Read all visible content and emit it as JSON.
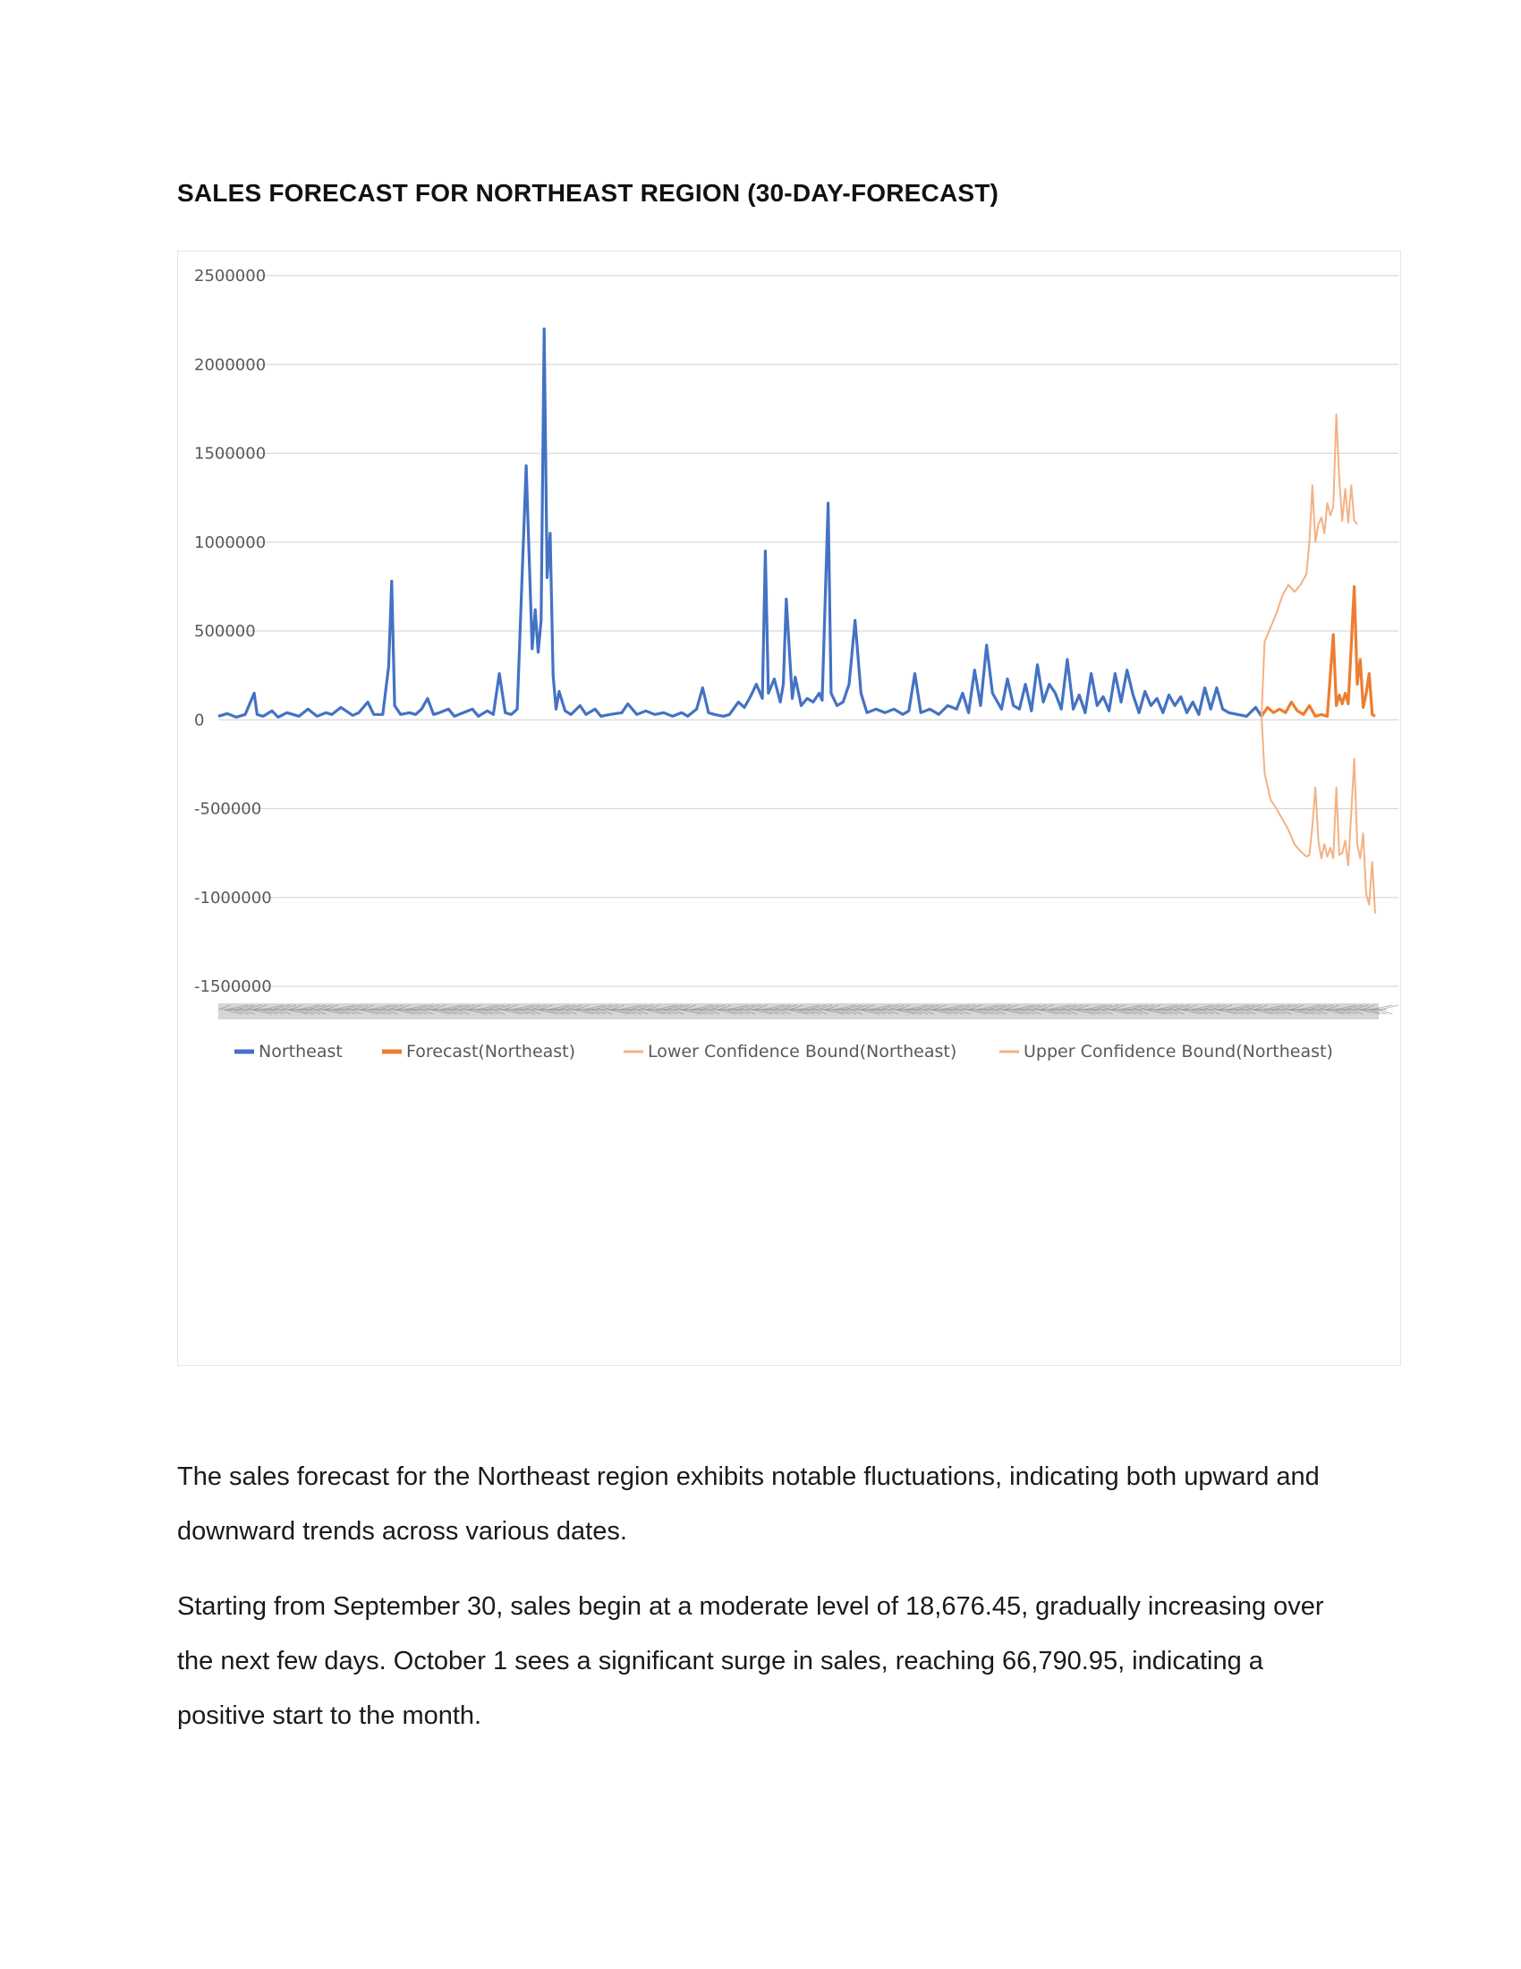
{
  "document": {
    "title": "SALES FORECAST FOR NORTHEAST REGION (30-DAY-FORECAST)",
    "paragraphs": [
      "The sales forecast for the Northeast region exhibits notable fluctuations, indicating both upward and downward trends across various dates.",
      "Starting from September 30, sales begin at a moderate level of 18,676.45, gradually increasing over the next few days. October 1 sees a significant surge in sales, reaching 66,790.95, indicating a positive start to the month."
    ]
  },
  "chart_data": {
    "type": "line",
    "title": "",
    "xlabel": "",
    "ylabel": "",
    "ylim": [
      -1500000,
      2500000
    ],
    "yticks": [
      "2500000",
      "2000000",
      "1500000",
      "1000000",
      "500000",
      "0",
      "-500000",
      "-1000000",
      "-1500000"
    ],
    "grid": true,
    "legend_position": "bottom",
    "x_labels_note": "x-axis date tick labels are rendered rotated and overlapping (illegible)",
    "series": [
      {
        "name": "Northeast",
        "color": "#4472C4",
        "points": [
          [
            0,
            20000
          ],
          [
            3,
            35000
          ],
          [
            6,
            15000
          ],
          [
            9,
            30000
          ],
          [
            12,
            150000
          ],
          [
            13,
            30000
          ],
          [
            15,
            20000
          ],
          [
            18,
            50000
          ],
          [
            20,
            15000
          ],
          [
            23,
            40000
          ],
          [
            27,
            20000
          ],
          [
            30,
            60000
          ],
          [
            33,
            20000
          ],
          [
            36,
            40000
          ],
          [
            38,
            30000
          ],
          [
            41,
            70000
          ],
          [
            45,
            25000
          ],
          [
            47,
            40000
          ],
          [
            50,
            100000
          ],
          [
            52,
            30000
          ],
          [
            55,
            30000
          ],
          [
            57,
            300000
          ],
          [
            58,
            780000
          ],
          [
            59,
            80000
          ],
          [
            61,
            30000
          ],
          [
            64,
            40000
          ],
          [
            66,
            30000
          ],
          [
            68,
            60000
          ],
          [
            70,
            120000
          ],
          [
            72,
            30000
          ],
          [
            74,
            40000
          ],
          [
            77,
            60000
          ],
          [
            79,
            20000
          ],
          [
            82,
            40000
          ],
          [
            85,
            60000
          ],
          [
            87,
            20000
          ],
          [
            90,
            50000
          ],
          [
            92,
            30000
          ],
          [
            94,
            260000
          ],
          [
            96,
            40000
          ],
          [
            98,
            30000
          ],
          [
            100,
            60000
          ],
          [
            103,
            1430000
          ],
          [
            105,
            400000
          ],
          [
            106,
            620000
          ],
          [
            107,
            380000
          ],
          [
            108,
            560000
          ],
          [
            109,
            2200000
          ],
          [
            110,
            800000
          ],
          [
            111,
            1050000
          ],
          [
            112,
            250000
          ],
          [
            113,
            60000
          ],
          [
            114,
            160000
          ],
          [
            116,
            50000
          ],
          [
            118,
            30000
          ],
          [
            121,
            80000
          ],
          [
            123,
            30000
          ],
          [
            126,
            60000
          ],
          [
            128,
            20000
          ],
          [
            131,
            30000
          ],
          [
            135,
            40000
          ],
          [
            137,
            90000
          ],
          [
            140,
            30000
          ],
          [
            143,
            50000
          ],
          [
            146,
            30000
          ],
          [
            149,
            40000
          ],
          [
            152,
            20000
          ],
          [
            155,
            40000
          ],
          [
            157,
            20000
          ],
          [
            160,
            60000
          ],
          [
            162,
            180000
          ],
          [
            164,
            40000
          ],
          [
            166,
            30000
          ],
          [
            169,
            20000
          ],
          [
            171,
            30000
          ],
          [
            174,
            100000
          ],
          [
            176,
            70000
          ],
          [
            178,
            130000
          ],
          [
            180,
            200000
          ],
          [
            182,
            120000
          ],
          [
            183,
            950000
          ],
          [
            184,
            150000
          ],
          [
            186,
            230000
          ],
          [
            188,
            100000
          ],
          [
            189,
            200000
          ],
          [
            190,
            680000
          ],
          [
            192,
            120000
          ],
          [
            193,
            240000
          ],
          [
            195,
            80000
          ],
          [
            197,
            120000
          ],
          [
            199,
            100000
          ],
          [
            201,
            150000
          ],
          [
            202,
            110000
          ],
          [
            204,
            1220000
          ],
          [
            205,
            150000
          ],
          [
            207,
            80000
          ],
          [
            209,
            100000
          ],
          [
            211,
            200000
          ],
          [
            213,
            560000
          ],
          [
            215,
            150000
          ],
          [
            217,
            40000
          ],
          [
            220,
            60000
          ],
          [
            223,
            40000
          ],
          [
            226,
            60000
          ],
          [
            229,
            30000
          ],
          [
            231,
            50000
          ],
          [
            233,
            260000
          ],
          [
            235,
            40000
          ],
          [
            238,
            60000
          ],
          [
            241,
            30000
          ],
          [
            244,
            80000
          ],
          [
            247,
            60000
          ],
          [
            249,
            150000
          ],
          [
            251,
            40000
          ],
          [
            253,
            280000
          ],
          [
            255,
            80000
          ],
          [
            257,
            420000
          ],
          [
            259,
            150000
          ],
          [
            262,
            60000
          ],
          [
            264,
            230000
          ],
          [
            266,
            80000
          ],
          [
            268,
            60000
          ],
          [
            270,
            200000
          ],
          [
            272,
            50000
          ],
          [
            274,
            310000
          ],
          [
            276,
            100000
          ],
          [
            278,
            200000
          ],
          [
            280,
            150000
          ],
          [
            282,
            60000
          ],
          [
            284,
            340000
          ],
          [
            286,
            60000
          ],
          [
            288,
            140000
          ],
          [
            290,
            40000
          ],
          [
            292,
            260000
          ],
          [
            294,
            80000
          ],
          [
            296,
            130000
          ],
          [
            298,
            50000
          ],
          [
            300,
            260000
          ],
          [
            302,
            100000
          ],
          [
            304,
            280000
          ],
          [
            306,
            140000
          ],
          [
            308,
            40000
          ],
          [
            310,
            160000
          ],
          [
            312,
            80000
          ],
          [
            314,
            120000
          ],
          [
            316,
            40000
          ],
          [
            318,
            140000
          ],
          [
            320,
            80000
          ],
          [
            322,
            130000
          ],
          [
            324,
            40000
          ],
          [
            326,
            100000
          ],
          [
            328,
            30000
          ],
          [
            330,
            180000
          ],
          [
            332,
            60000
          ],
          [
            334,
            180000
          ],
          [
            336,
            60000
          ],
          [
            338,
            40000
          ],
          [
            341,
            30000
          ],
          [
            344,
            20000
          ],
          [
            347,
            70000
          ],
          [
            349,
            20000
          ]
        ]
      },
      {
        "name": "Forecast(Northeast)",
        "color": "#ED7D31",
        "points": [
          [
            349,
            20000
          ],
          [
            351,
            70000
          ],
          [
            353,
            40000
          ],
          [
            355,
            60000
          ],
          [
            357,
            40000
          ],
          [
            359,
            100000
          ],
          [
            361,
            50000
          ],
          [
            363,
            30000
          ],
          [
            365,
            80000
          ],
          [
            367,
            20000
          ],
          [
            369,
            30000
          ],
          [
            371,
            20000
          ],
          [
            373,
            480000
          ],
          [
            374,
            80000
          ],
          [
            375,
            140000
          ],
          [
            376,
            90000
          ],
          [
            377,
            150000
          ],
          [
            378,
            90000
          ],
          [
            379,
            420000
          ],
          [
            380,
            750000
          ],
          [
            381,
            200000
          ],
          [
            382,
            340000
          ],
          [
            383,
            70000
          ],
          [
            384,
            150000
          ],
          [
            385,
            260000
          ],
          [
            386,
            30000
          ],
          [
            387,
            20000
          ]
        ]
      },
      {
        "name": "Lower Confidence Bound(Northeast)",
        "color": "#F4B183",
        "points": [
          [
            349,
            20000
          ],
          [
            350,
            -300000
          ],
          [
            352,
            -450000
          ],
          [
            354,
            -500000
          ],
          [
            356,
            -560000
          ],
          [
            358,
            -620000
          ],
          [
            360,
            -700000
          ],
          [
            362,
            -740000
          ],
          [
            364,
            -770000
          ],
          [
            365,
            -760000
          ],
          [
            366,
            -600000
          ],
          [
            367,
            -380000
          ],
          [
            368,
            -680000
          ],
          [
            369,
            -780000
          ],
          [
            370,
            -700000
          ],
          [
            371,
            -770000
          ],
          [
            372,
            -720000
          ],
          [
            373,
            -780000
          ],
          [
            374,
            -380000
          ],
          [
            375,
            -760000
          ],
          [
            376,
            -750000
          ],
          [
            377,
            -680000
          ],
          [
            378,
            -820000
          ],
          [
            379,
            -520000
          ],
          [
            380,
            -220000
          ],
          [
            381,
            -700000
          ],
          [
            382,
            -780000
          ],
          [
            383,
            -640000
          ],
          [
            384,
            -980000
          ],
          [
            385,
            -1040000
          ],
          [
            386,
            -800000
          ],
          [
            387,
            -1090000
          ]
        ]
      },
      {
        "name": "Upper Confidence Bound(Northeast)",
        "color": "#F4B183",
        "points": [
          [
            349,
            20000
          ],
          [
            350,
            440000
          ],
          [
            352,
            520000
          ],
          [
            354,
            600000
          ],
          [
            356,
            700000
          ],
          [
            358,
            760000
          ],
          [
            360,
            720000
          ],
          [
            362,
            760000
          ],
          [
            364,
            820000
          ],
          [
            365,
            1000000
          ],
          [
            366,
            1320000
          ],
          [
            367,
            1000000
          ],
          [
            368,
            1100000
          ],
          [
            369,
            1140000
          ],
          [
            370,
            1050000
          ],
          [
            371,
            1220000
          ],
          [
            372,
            1150000
          ],
          [
            373,
            1200000
          ],
          [
            374,
            1720000
          ],
          [
            375,
            1350000
          ],
          [
            376,
            1120000
          ],
          [
            377,
            1300000
          ],
          [
            378,
            1110000
          ],
          [
            379,
            1320000
          ],
          [
            380,
            1120000
          ],
          [
            381,
            1100000
          ]
        ]
      }
    ]
  }
}
